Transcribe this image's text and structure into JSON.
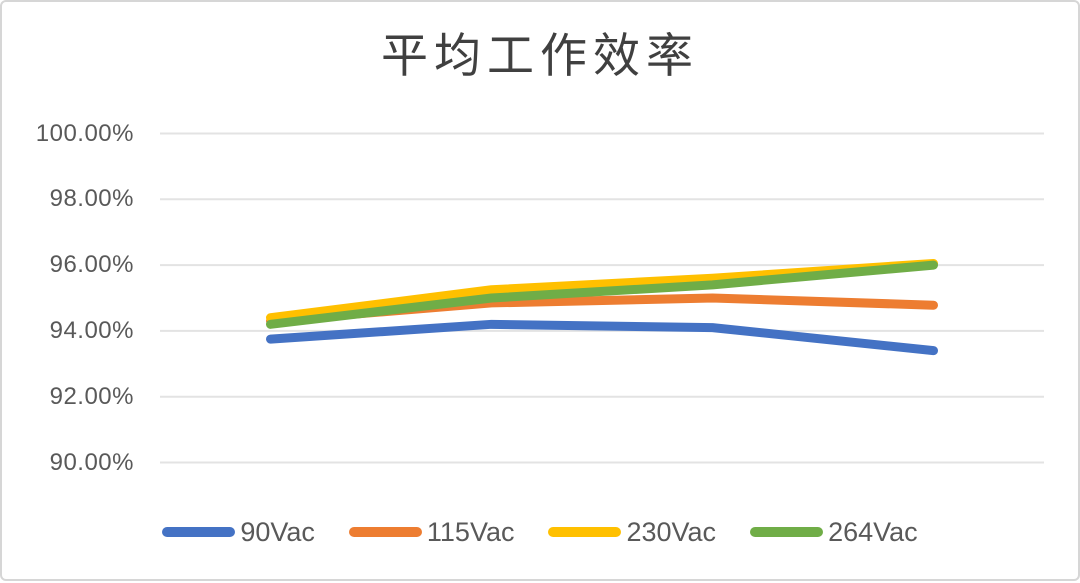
{
  "chart_data": {
    "type": "line",
    "title": "平均工作效率",
    "categories": [
      1,
      2,
      3,
      4
    ],
    "x_axis": {
      "tick_labels_visible": false
    },
    "y_axis": {
      "min": 90,
      "max": 100,
      "step": 2,
      "format": "percent",
      "tick_labels": [
        "100.00%",
        "98.00%",
        "96.00%",
        "94.00%",
        "92.00%",
        "90.00%"
      ]
    },
    "grid": "horizontal",
    "legend_position": "bottom",
    "series": [
      {
        "name": "90Vac",
        "color": "#4472C4",
        "values": [
          93.75,
          94.2,
          94.1,
          93.4
        ]
      },
      {
        "name": "115Vac",
        "color": "#ED7D31",
        "values": [
          94.3,
          94.85,
          95.0,
          94.78
        ]
      },
      {
        "name": "230Vac",
        "color": "#FFC000",
        "values": [
          94.4,
          95.25,
          95.6,
          96.05
        ]
      },
      {
        "name": "264Vac",
        "color": "#70AD47",
        "values": [
          94.2,
          95.0,
          95.4,
          96.0
        ]
      }
    ]
  },
  "style": {
    "text_color": "#595959",
    "title_color": "#404040",
    "gridline_color": "#E3E3E3",
    "border_color": "#D6D6D6",
    "background": "#FFFFFF"
  }
}
